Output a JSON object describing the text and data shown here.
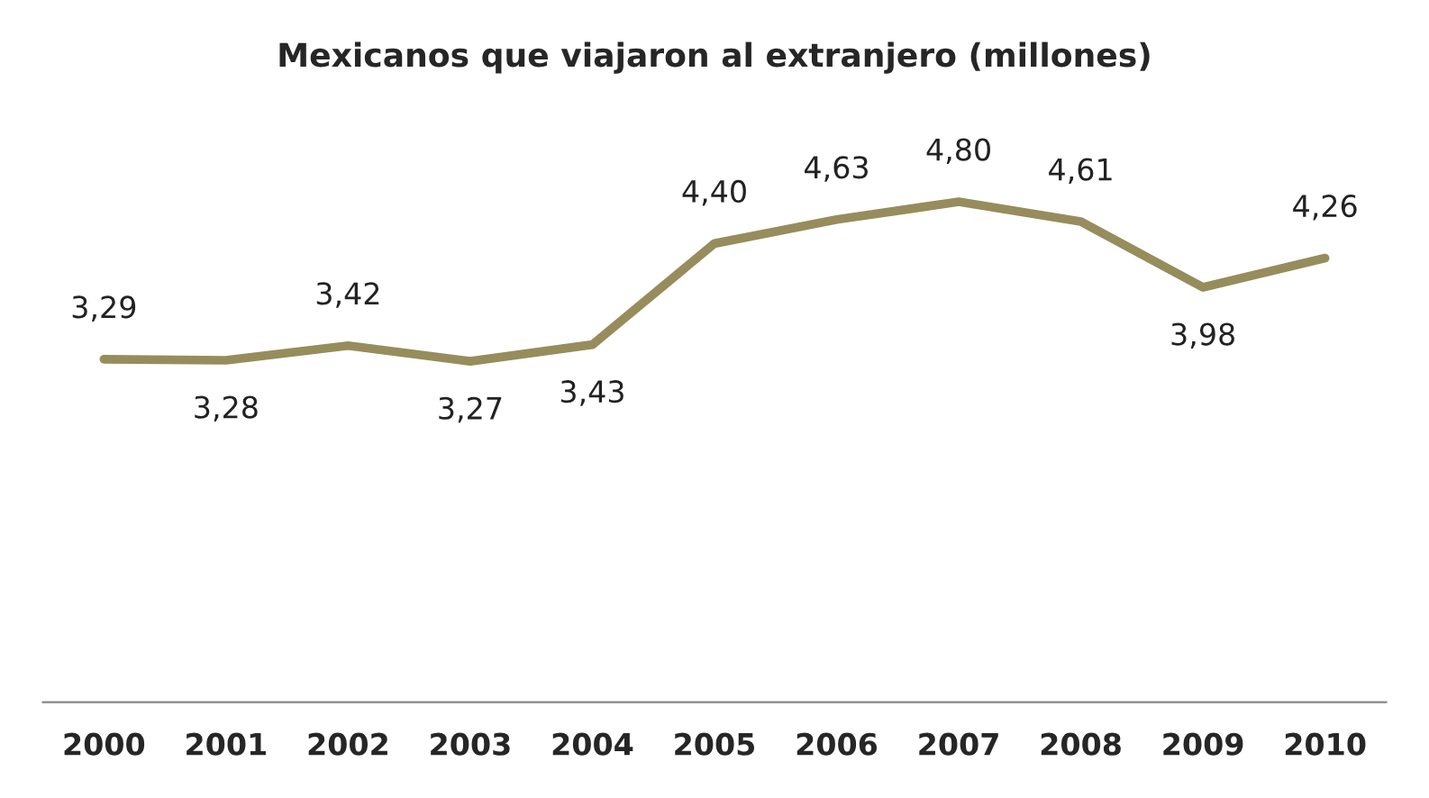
{
  "chart_data": {
    "type": "line",
    "title": "Mexicanos que viajaron al extranjero (millones)",
    "categories": [
      "2000",
      "2001",
      "2002",
      "2003",
      "2004",
      "2005",
      "2006",
      "2007",
      "2008",
      "2009",
      "2010"
    ],
    "series": [
      {
        "color": "#978c5c",
        "values": [
          3.29,
          3.28,
          3.42,
          3.27,
          3.43,
          4.4,
          4.63,
          4.8,
          4.61,
          3.98,
          4.26
        ],
        "value_labels": [
          "3,29",
          "3,28",
          "3,42",
          "3,27",
          "3,43",
          "4,40",
          "4,63",
          "4,80",
          "4,61",
          "3,98",
          "4,26"
        ]
      }
    ],
    "tick_labels": "x",
    "grid": false,
    "marker": "none",
    "line_style": "solid"
  }
}
